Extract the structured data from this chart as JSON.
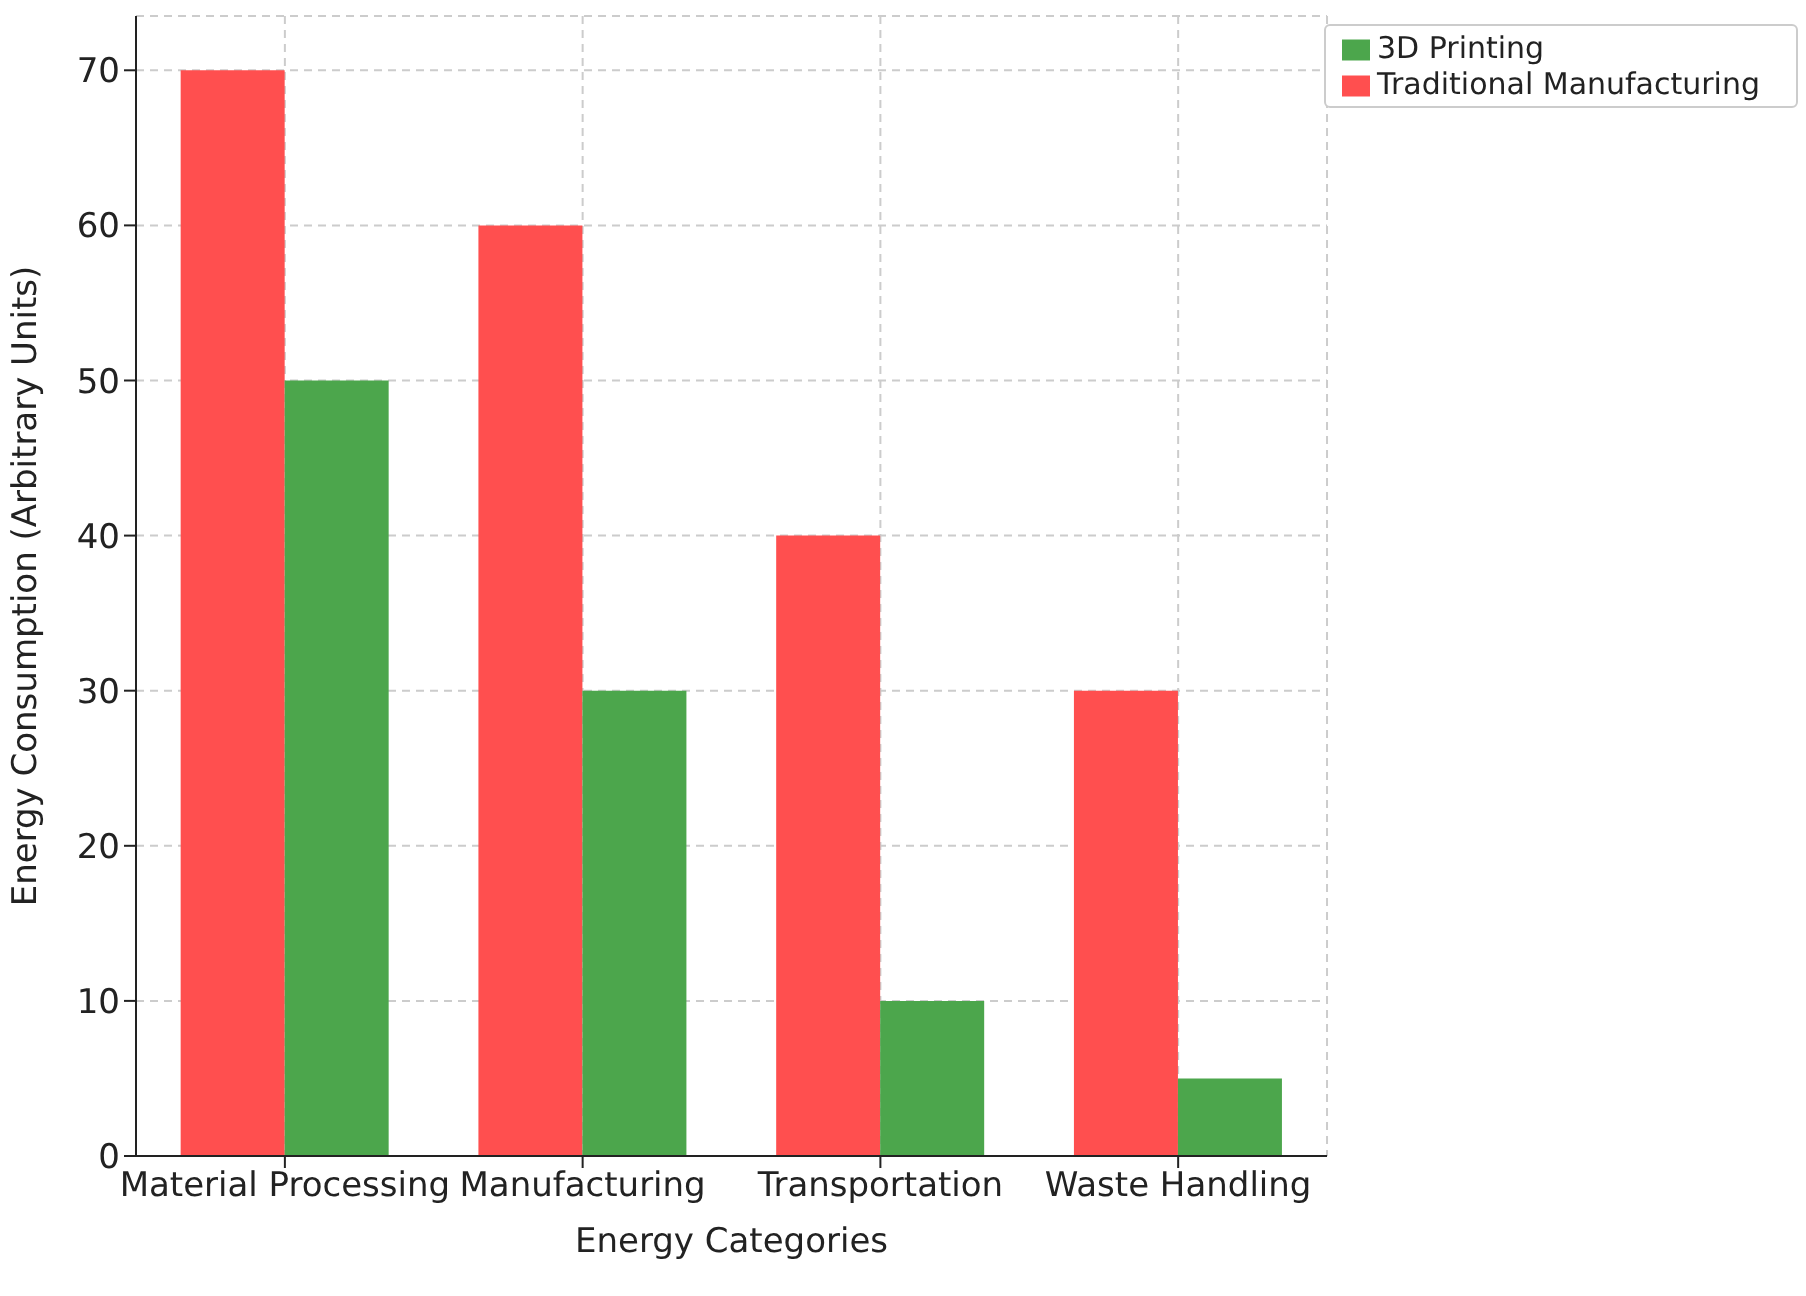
{
  "chart_data": {
    "type": "bar",
    "xlabel": "Energy Categories",
    "ylabel": "Energy Consumption (Arbitrary Units)",
    "categories": [
      "Material Processing",
      "Manufacturing",
      "Transportation",
      "Waste Handling"
    ],
    "series": [
      {
        "name": "Traditional Manufacturing",
        "color": "#ff4f4f",
        "values": [
          70,
          60,
          40,
          30
        ]
      },
      {
        "name": "3D Printing",
        "color": "#4ca64c",
        "values": [
          50,
          30,
          10,
          5
        ]
      }
    ],
    "ylim": [
      0,
      73.5
    ],
    "yticks": [
      0,
      10,
      20,
      30,
      40,
      50,
      60,
      70
    ],
    "grid": true,
    "legend": "top right"
  }
}
